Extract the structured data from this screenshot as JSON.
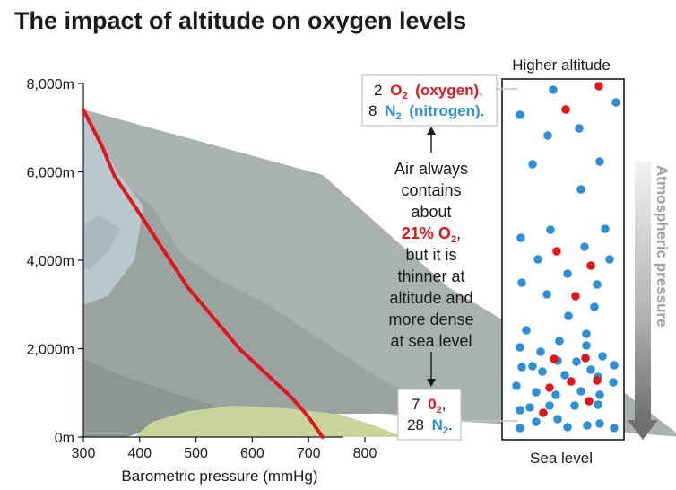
{
  "title": "The impact of altitude on oxygen levels",
  "chart_data": {
    "type": "line",
    "xlabel": "Barometric pressure (mmHg)",
    "ylabel": "",
    "xlim": [
      300,
      800
    ],
    "ylim": [
      0,
      8000
    ],
    "x_ticks": [
      "300",
      "400",
      "500",
      "600",
      "700",
      "800"
    ],
    "y_ticks": [
      "0m",
      "2,000m",
      "4,000m",
      "6,000m",
      "8,000m"
    ],
    "series": [
      {
        "color": "#e0161b",
        "x": [
          300,
          335,
          360,
          400,
          450,
          500,
          550,
          600,
          650,
          700,
          730,
          760
        ],
        "y": [
          7400,
          6600,
          5900,
          5200,
          4300,
          3400,
          2700,
          2000,
          1450,
          900,
          500,
          0
        ]
      }
    ],
    "grid": false
  },
  "panel": {
    "top_label": "Higher altitude",
    "bottom_label": "Sea level",
    "pressure_label": "Atmospheric pressure",
    "top_box": {
      "line1_count": "2",
      "line1_formula": "O",
      "line1_sub": "2",
      "line1_name": "(oxygen)",
      "line1_end": ",",
      "line2_count": "8",
      "line2_formula": "N",
      "line2_sub": "2",
      "line2_name": "(nitrogen)",
      "line2_end": "."
    },
    "bottom_box": {
      "line1_count": "7",
      "line1_formula": "0",
      "line1_sub": "2",
      "line1_end": ",",
      "line2_count": "28",
      "line2_formula": "N",
      "line2_sub": "2",
      "line2_end": "."
    },
    "note": {
      "l1": "Air always",
      "l2": "contains",
      "l3": "about",
      "l4_value": "21% O",
      "l4_sub": "2",
      "l4_end": ",",
      "l5": "but it is",
      "l6": "thinner at",
      "l7": "altitude and",
      "l8": "more dense",
      "l9": "at sea level"
    },
    "colors": {
      "oxygen": "#e0161b",
      "nitrogen": "#2e8fd6",
      "arrow": "#6f6f6f"
    }
  }
}
